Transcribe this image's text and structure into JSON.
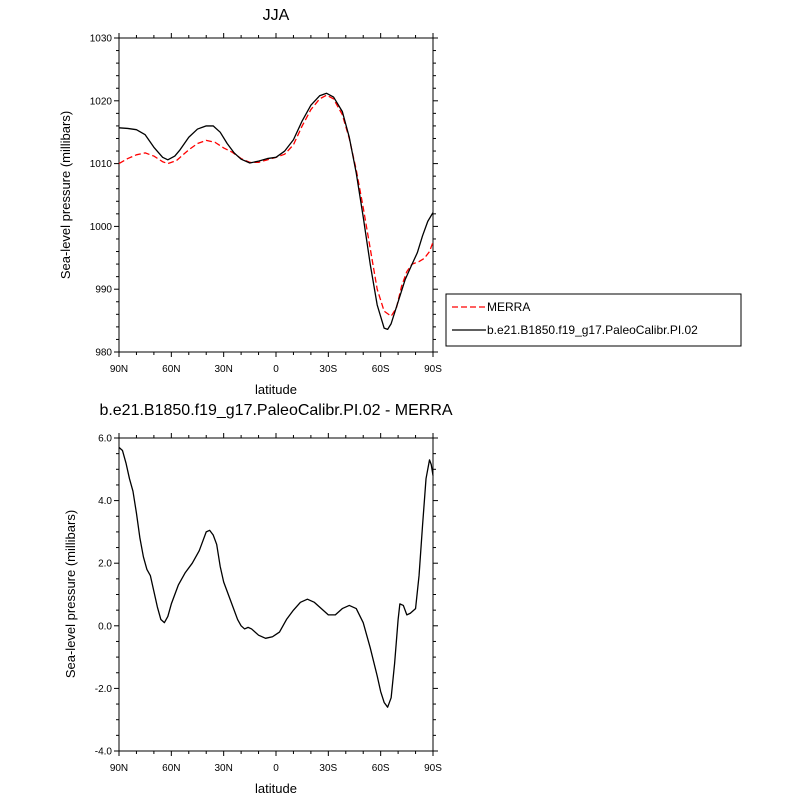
{
  "chart_data": [
    {
      "type": "line",
      "title": "JJA",
      "xlabel": "latitude",
      "ylabel": "Sea-level pressure (millibars)",
      "xlim": [
        90,
        -90
      ],
      "ylim": [
        980,
        1030
      ],
      "x_ticks": [
        90,
        60,
        30,
        0,
        -30,
        -60,
        -90
      ],
      "x_tick_labels": [
        "90N",
        "60N",
        "30N",
        "0",
        "30S",
        "60S",
        "90S"
      ],
      "y_ticks": [
        980,
        990,
        1000,
        1010,
        1020,
        1030
      ],
      "y_tick_labels": [
        "980",
        "990",
        "1000",
        "1010",
        "1020",
        "1030"
      ],
      "legend_position": "right",
      "series": [
        {
          "name": "MERRA",
          "color": "#ff0000",
          "style": "dashed",
          "points": [
            [
              90,
              1010.0
            ],
            [
              85,
              1010.8
            ],
            [
              80,
              1011.4
            ],
            [
              75,
              1011.7
            ],
            [
              70,
              1011.2
            ],
            [
              65,
              1010.3
            ],
            [
              62,
              1010.0
            ],
            [
              57,
              1010.5
            ],
            [
              50,
              1012.2
            ],
            [
              45,
              1013.2
            ],
            [
              40,
              1013.7
            ],
            [
              35,
              1013.4
            ],
            [
              30,
              1012.5
            ],
            [
              25,
              1011.8
            ],
            [
              20,
              1010.8
            ],
            [
              15,
              1010.2
            ],
            [
              10,
              1010.2
            ],
            [
              5,
              1010.6
            ],
            [
              0,
              1011.0
            ],
            [
              -5,
              1011.5
            ],
            [
              -10,
              1013.0
            ],
            [
              -15,
              1016.0
            ],
            [
              -20,
              1018.6
            ],
            [
              -25,
              1020.3
            ],
            [
              -29,
              1020.9
            ],
            [
              -33,
              1020.3
            ],
            [
              -38,
              1017.8
            ],
            [
              -42,
              1014.0
            ],
            [
              -46,
              1009.0
            ],
            [
              -50,
              1003.0
            ],
            [
              -54,
              996.5
            ],
            [
              -58,
              990.0
            ],
            [
              -62,
              986.5
            ],
            [
              -66,
              985.7
            ],
            [
              -69,
              987.0
            ],
            [
              -72,
              990.5
            ],
            [
              -75,
              992.8
            ],
            [
              -78,
              994.0
            ],
            [
              -82,
              994.4
            ],
            [
              -85,
              994.9
            ],
            [
              -88,
              996.0
            ],
            [
              -90,
              997.5
            ]
          ]
        },
        {
          "name": "b.e21.B1850.f19_g17.PaleoCalibr.PI.02",
          "color": "#000000",
          "style": "solid",
          "points": [
            [
              90,
              1015.7
            ],
            [
              85,
              1015.6
            ],
            [
              80,
              1015.4
            ],
            [
              75,
              1014.6
            ],
            [
              70,
              1012.6
            ],
            [
              65,
              1011.0
            ],
            [
              62,
              1010.6
            ],
            [
              58,
              1011.2
            ],
            [
              55,
              1012.2
            ],
            [
              50,
              1014.2
            ],
            [
              45,
              1015.5
            ],
            [
              40,
              1016.0
            ],
            [
              36,
              1016.0
            ],
            [
              32,
              1015.0
            ],
            [
              28,
              1013.2
            ],
            [
              24,
              1011.7
            ],
            [
              20,
              1010.7
            ],
            [
              15,
              1010.1
            ],
            [
              10,
              1010.4
            ],
            [
              5,
              1010.8
            ],
            [
              0,
              1011.0
            ],
            [
              -5,
              1012.0
            ],
            [
              -10,
              1013.8
            ],
            [
              -15,
              1016.8
            ],
            [
              -20,
              1019.3
            ],
            [
              -25,
              1020.8
            ],
            [
              -29,
              1021.2
            ],
            [
              -33,
              1020.6
            ],
            [
              -38,
              1018.3
            ],
            [
              -42,
              1014.2
            ],
            [
              -46,
              1008.5
            ],
            [
              -50,
              1001.5
            ],
            [
              -54,
              994.0
            ],
            [
              -58,
              987.5
            ],
            [
              -62,
              983.8
            ],
            [
              -64,
              983.6
            ],
            [
              -66,
              984.5
            ],
            [
              -70,
              988.0
            ],
            [
              -74,
              991.5
            ],
            [
              -78,
              994.0
            ],
            [
              -81,
              995.8
            ],
            [
              -84,
              998.5
            ],
            [
              -87,
              1000.8
            ],
            [
              -90,
              1002.2
            ]
          ]
        }
      ]
    },
    {
      "type": "line",
      "title": "b.e21.B1850.f19_g17.PaleoCalibr.PI.02 - MERRA",
      "xlabel": "latitude",
      "ylabel": "Sea-level pressure (millibars)",
      "xlim": [
        90,
        -90
      ],
      "ylim": [
        -4.0,
        6.0
      ],
      "x_ticks": [
        90,
        60,
        30,
        0,
        -30,
        -60,
        -90
      ],
      "x_tick_labels": [
        "90N",
        "60N",
        "30N",
        "0",
        "30S",
        "60S",
        "90S"
      ],
      "y_ticks": [
        -4.0,
        -2.0,
        0.0,
        2.0,
        4.0,
        6.0
      ],
      "y_tick_labels": [
        "-4.0",
        "-2.0",
        "0.0",
        "2.0",
        "4.0",
        "6.0"
      ],
      "series": [
        {
          "color": "#000000",
          "style": "solid",
          "points": [
            [
              90,
              5.7
            ],
            [
              88,
              5.6
            ],
            [
              86,
              5.2
            ],
            [
              84,
              4.7
            ],
            [
              82,
              4.3
            ],
            [
              80,
              3.6
            ],
            [
              78,
              2.8
            ],
            [
              76,
              2.2
            ],
            [
              74,
              1.8
            ],
            [
              72,
              1.6
            ],
            [
              70,
              1.1
            ],
            [
              68,
              0.6
            ],
            [
              66,
              0.2
            ],
            [
              64,
              0.1
            ],
            [
              62,
              0.3
            ],
            [
              60,
              0.7
            ],
            [
              56,
              1.3
            ],
            [
              52,
              1.7
            ],
            [
              48,
              2.0
            ],
            [
              46,
              2.2
            ],
            [
              44,
              2.4
            ],
            [
              42,
              2.7
            ],
            [
              40,
              3.0
            ],
            [
              38,
              3.05
            ],
            [
              36,
              2.9
            ],
            [
              34,
              2.6
            ],
            [
              32,
              1.9
            ],
            [
              30,
              1.4
            ],
            [
              26,
              0.8
            ],
            [
              22,
              0.2
            ],
            [
              20,
              0.0
            ],
            [
              18,
              -0.1
            ],
            [
              16,
              -0.05
            ],
            [
              14,
              -0.1
            ],
            [
              10,
              -0.3
            ],
            [
              6,
              -0.4
            ],
            [
              2,
              -0.35
            ],
            [
              -2,
              -0.2
            ],
            [
              -6,
              0.2
            ],
            [
              -10,
              0.5
            ],
            [
              -14,
              0.75
            ],
            [
              -18,
              0.85
            ],
            [
              -22,
              0.75
            ],
            [
              -26,
              0.55
            ],
            [
              -30,
              0.35
            ],
            [
              -34,
              0.35
            ],
            [
              -38,
              0.55
            ],
            [
              -42,
              0.65
            ],
            [
              -46,
              0.55
            ],
            [
              -50,
              0.1
            ],
            [
              -54,
              -0.7
            ],
            [
              -58,
              -1.6
            ],
            [
              -60,
              -2.1
            ],
            [
              -62,
              -2.45
            ],
            [
              -64,
              -2.6
            ],
            [
              -66,
              -2.3
            ],
            [
              -68,
              -1.2
            ],
            [
              -70,
              0.2
            ],
            [
              -71,
              0.7
            ],
            [
              -73,
              0.65
            ],
            [
              -75,
              0.35
            ],
            [
              -77,
              0.4
            ],
            [
              -80,
              0.55
            ],
            [
              -82,
              1.6
            ],
            [
              -84,
              3.2
            ],
            [
              -86,
              4.7
            ],
            [
              -88,
              5.3
            ],
            [
              -89,
              5.15
            ],
            [
              -90,
              4.8
            ]
          ]
        }
      ]
    }
  ]
}
